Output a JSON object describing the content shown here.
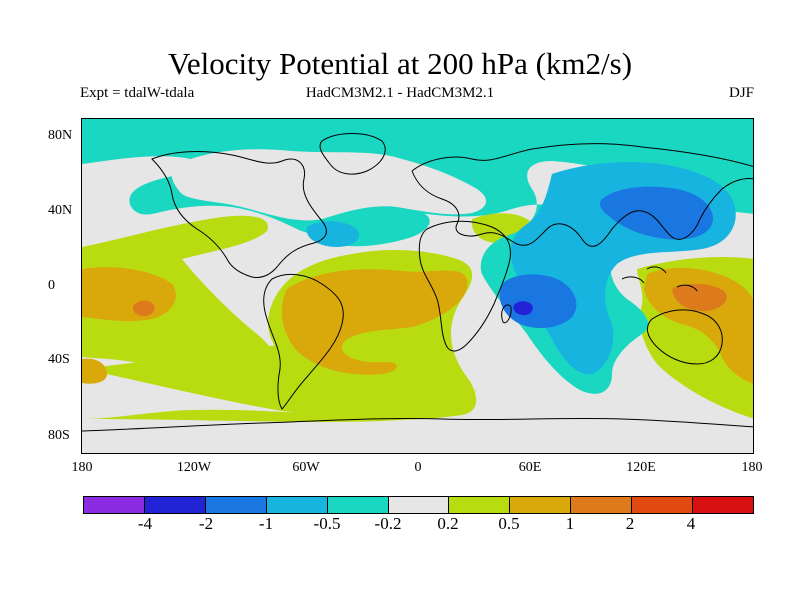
{
  "title": "Velocity Potential at 200 hPa (km2/s)",
  "subtitle_left": "Expt = tdalW-tdala",
  "subtitle_center": "HadCM3M2.1 - HadCM3M2.1",
  "subtitle_right": "DJF",
  "y_ticks": [
    "80N",
    "40N",
    "0",
    "40S",
    "80S"
  ],
  "x_ticks": [
    "180",
    "120W",
    "60W",
    "0",
    "60E",
    "120E",
    "180"
  ],
  "colorbar": {
    "colors": [
      "#8b2be2",
      "#2323d6",
      "#1a76e0",
      "#16b4df",
      "#1ad7c2",
      "#e6e6e6",
      "#b9dc10",
      "#d9a90c",
      "#dc7a1c",
      "#e04a10",
      "#d91010"
    ],
    "labels": [
      "-4",
      "-2",
      "-1",
      "-0.5",
      "-0.2",
      "0.2",
      "0.5",
      "1",
      "2",
      "4"
    ]
  },
  "chart_data": {
    "type": "heatmap",
    "title": "Velocity Potential at 200 hPa (km2/s)",
    "variable": "Velocity Potential",
    "level": "200 hPa",
    "units": "km2/s",
    "season": "DJF",
    "experiment": "tdalW-tdala",
    "models": "HadCM3M2.1 - HadCM3M2.1",
    "lon_range": [
      -180,
      180
    ],
    "lat_range": [
      -90,
      90
    ],
    "contour_levels": [
      -4,
      -2,
      -1,
      -0.5,
      -0.2,
      0.2,
      0.5,
      1,
      2,
      4
    ],
    "features": [
      {
        "region": "Indian Ocean / East Africa",
        "sign": "negative",
        "min_approx": -2
      },
      {
        "region": "East Asia / NW Pacific",
        "sign": "negative",
        "min_approx": -1
      },
      {
        "region": "North Atlantic / Arctic",
        "sign": "negative",
        "min_approx": -0.5
      },
      {
        "region": "Western Pacific / Australia",
        "sign": "positive",
        "max_approx": 2
      },
      {
        "region": "Central Pacific",
        "sign": "positive",
        "max_approx": 2
      },
      {
        "region": "South America / South Atlantic",
        "sign": "positive",
        "max_approx": 1
      },
      {
        "region": "SE Pacific",
        "sign": "positive",
        "max_approx": 1
      }
    ]
  }
}
